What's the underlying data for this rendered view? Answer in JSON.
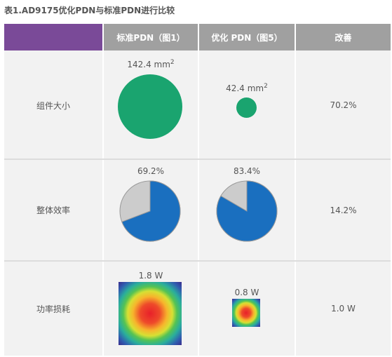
{
  "title": "表1.AD9175优化PDN与标准PDN进行比较",
  "headers": {
    "col1": "标准PDN（图1）",
    "col2": "优化 PDN（图5）",
    "col3": "改善"
  },
  "rows": [
    {
      "label": "组件大小",
      "standard": {
        "value": "142.4 mm",
        "sup": "2"
      },
      "optimized": {
        "value": "42.4 mm",
        "sup": "2"
      },
      "improvement": "70.2%"
    },
    {
      "label": "整体效率",
      "standard": {
        "value": "69.2%",
        "fraction": 0.692
      },
      "optimized": {
        "value": "83.4%",
        "fraction": 0.834
      },
      "improvement": "14.2%"
    },
    {
      "label": "功率损耗",
      "standard": {
        "value": "1.8 W"
      },
      "optimized": {
        "value": "0.8 W"
      },
      "improvement": "1.0 W"
    }
  ],
  "colors": {
    "header_corner": "#7a4a98",
    "header": "#a0a0a0",
    "area_circle": "#1aa46f",
    "efficiency_pie": "#1a6fbf",
    "loss_pie": "#cccccc"
  }
}
